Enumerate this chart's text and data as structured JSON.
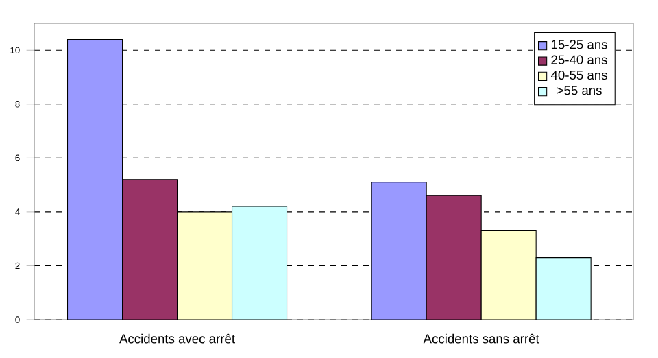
{
  "chart_data": {
    "type": "bar",
    "categories": [
      "Accidents avec arrêt",
      "Accidents sans arrêt"
    ],
    "series": [
      {
        "name": "15-25 ans",
        "color": "#9999ff",
        "values": [
          10.4,
          5.1
        ]
      },
      {
        "name": "25-40 ans",
        "color": "#993366",
        "values": [
          5.2,
          4.6
        ]
      },
      {
        "name": "40-55 ans",
        "color": "#ffffcc",
        "values": [
          4.0,
          3.3
        ]
      },
      {
        "name": ">55 ans",
        "color": "#ccffff",
        "values": [
          4.2,
          2.3
        ]
      }
    ],
    "ylim": [
      0,
      11
    ],
    "yticks": [
      0,
      2,
      4,
      6,
      8,
      10
    ],
    "grid": "y",
    "legend": "top right"
  }
}
